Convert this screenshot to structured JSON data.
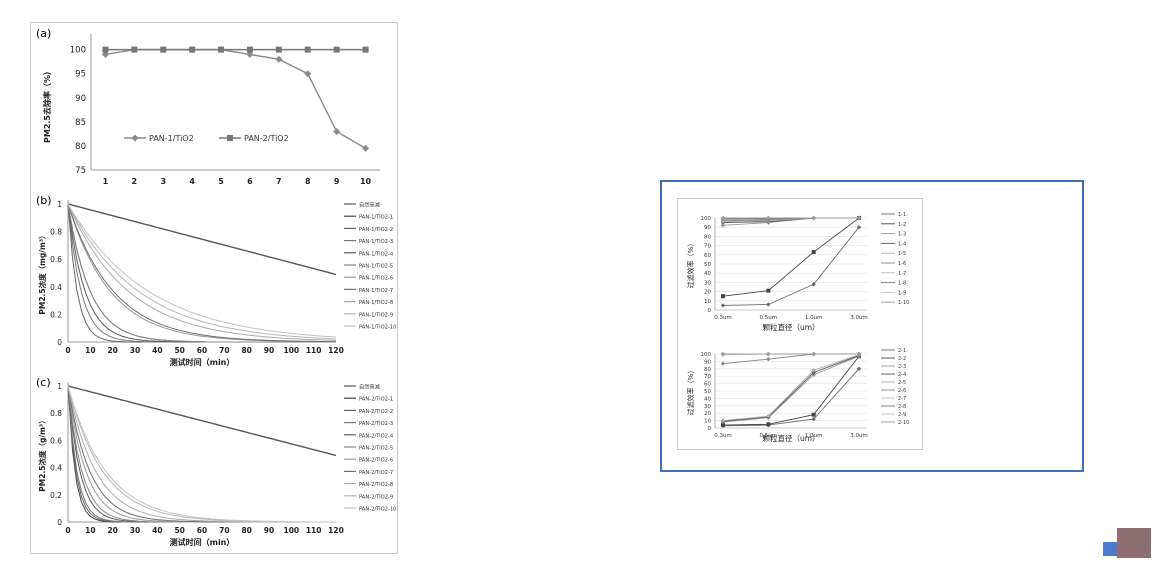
{
  "chart_data": [
    {
      "id": "a",
      "type": "line",
      "panel_label": "(a)",
      "ylabel": "PM2.5去除率（%）",
      "xlabel": "",
      "categories": [
        "1",
        "2",
        "3",
        "4",
        "5",
        "6",
        "7",
        "8",
        "9",
        "10"
      ],
      "yticks": [
        "100",
        "95",
        "90",
        "85",
        "80",
        "75"
      ],
      "ylim": [
        75,
        102
      ],
      "series": [
        {
          "name": "PAN-1/TiO2",
          "marker": "diamond",
          "color": "#8a8a8a",
          "values": [
            99,
            100,
            100,
            100,
            100,
            99,
            98,
            95,
            83,
            79.5
          ]
        },
        {
          "name": "PAN-2/TiO2",
          "marker": "square",
          "color": "#777777",
          "values": [
            100,
            100,
            100,
            100,
            100,
            100,
            100,
            100,
            100,
            100
          ]
        }
      ]
    },
    {
      "id": "b",
      "type": "line",
      "panel_label": "(b)",
      "ylabel": "PM2.5浓度（mg/m³）",
      "xlabel": "测试时间（min）",
      "xticks": [
        "0",
        "10",
        "20",
        "30",
        "40",
        "50",
        "60",
        "70",
        "80",
        "90",
        "100",
        "110",
        "120"
      ],
      "yticks": [
        "1",
        "0.8",
        "0.6",
        "0.4",
        "0.2",
        "0"
      ],
      "xlim": [
        0,
        120
      ],
      "ylim": [
        0,
        1
      ],
      "legend": [
        "自然衰减",
        "PAN-1/TiO2-1",
        "PAN-1/TiO2-2",
        "PAN-1/TiO2-3",
        "PAN-1/TiO2-4",
        "PAN-1/TiO2-5",
        "PAN-1/TiO2-6",
        "PAN-1/TiO2-7",
        "PAN-1/TiO2-8",
        "PAN-1/TiO2-9",
        "PAN-1/TiO2-10"
      ],
      "decay_times": [
        170,
        22,
        9,
        13,
        17,
        22,
        42,
        45,
        60,
        70,
        80
      ]
    },
    {
      "id": "c",
      "type": "line",
      "panel_label": "(c)",
      "ylabel": "PM2.5浓度（g/m³）",
      "xlabel": "测试时间（min）",
      "xticks": [
        "0",
        "10",
        "20",
        "30",
        "40",
        "50",
        "60",
        "70",
        "80",
        "90",
        "100",
        "110",
        "120"
      ],
      "yticks": [
        "1",
        "0.8",
        "0.6",
        "0.4",
        "0.2",
        "0"
      ],
      "xlim": [
        0,
        120
      ],
      "ylim": [
        0,
        1
      ],
      "legend": [
        "自然衰减",
        "PAN-2/TiO2-1",
        "PAN-2/TiO2-2",
        "PAN-2/TiO2-3",
        "PAN-2/TiO2-4",
        "PAN-2/TiO2-5",
        "PAN-2/TiO2-6",
        "PAN-2/TiO2-7",
        "PAN-2/TiO2-8",
        "PAN-2/TiO2-9",
        "PAN-2/TiO2-10"
      ],
      "decay_times": [
        170,
        7,
        8,
        9,
        12,
        14,
        18,
        22,
        28,
        35,
        38
      ]
    },
    {
      "id": "d",
      "type": "line",
      "ylabel": "过滤效率（%）",
      "xlabel": "颗粒直径（um）",
      "categories": [
        "0.3um",
        "0.5um",
        "1.0um",
        "3.0um"
      ],
      "yticks": [
        "100",
        "90",
        "80",
        "70",
        "60",
        "50",
        "40",
        "30",
        "20",
        "10",
        "0"
      ],
      "ylim": [
        0,
        100
      ],
      "series": [
        {
          "name": "1-1",
          "values": [
            5,
            6,
            28,
            90
          ]
        },
        {
          "name": "1-2",
          "values": [
            15,
            21,
            63,
            100
          ]
        },
        {
          "name": "1-3",
          "values": [
            92,
            95,
            100,
            100
          ]
        },
        {
          "name": "1-4",
          "values": [
            95,
            96,
            100,
            100
          ]
        },
        {
          "name": "1-5",
          "values": [
            96,
            97,
            100,
            100
          ]
        },
        {
          "name": "1-6",
          "values": [
            97,
            98,
            100,
            100
          ]
        },
        {
          "name": "1-7",
          "values": [
            98,
            99,
            100,
            100
          ]
        },
        {
          "name": "1-8",
          "values": [
            99,
            99,
            100,
            100
          ]
        },
        {
          "name": "1-9",
          "values": [
            100,
            100,
            100,
            100
          ]
        },
        {
          "name": "1-10",
          "values": [
            100,
            100,
            100,
            100
          ]
        }
      ]
    },
    {
      "id": "e",
      "type": "line",
      "ylabel": "过滤效率（%）",
      "xlabel": "颗粒直径（um）",
      "categories": [
        "0.3um",
        "0.5um",
        "1.0um",
        "3.0um"
      ],
      "yticks": [
        "100",
        "90",
        "80",
        "70",
        "60",
        "50",
        "40",
        "30",
        "20",
        "10",
        "0"
      ],
      "ylim": [
        0,
        100
      ],
      "series": [
        {
          "name": "2-1",
          "values": [
            3,
            4,
            12,
            80
          ]
        },
        {
          "name": "2-2",
          "values": [
            4,
            5,
            18,
            97
          ]
        },
        {
          "name": "2-3",
          "values": [
            8,
            14,
            72,
            97
          ]
        },
        {
          "name": "2-4",
          "values": [
            9,
            15,
            75,
            98
          ]
        },
        {
          "name": "2-5",
          "values": [
            10,
            16,
            78,
            99
          ]
        },
        {
          "name": "2-6",
          "values": [
            87,
            93,
            100,
            100
          ]
        },
        {
          "name": "2-7",
          "values": [
            99,
            100,
            100,
            100
          ]
        },
        {
          "name": "2-8",
          "values": [
            100,
            100,
            100,
            100
          ]
        },
        {
          "name": "2-9",
          "values": [
            100,
            100,
            100,
            100
          ]
        },
        {
          "name": "2-10",
          "values": [
            100,
            100,
            100,
            100
          ]
        }
      ]
    }
  ]
}
